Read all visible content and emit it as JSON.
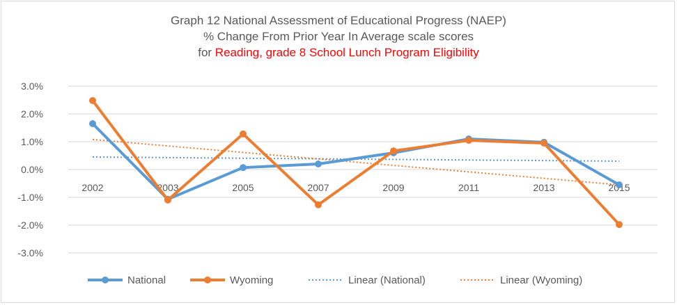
{
  "chart_data": {
    "type": "line",
    "title_lines": [
      "Graph 12 National Assessment of Educational Progress (NAEP)",
      "% Change From Prior Year In Average scale scores"
    ],
    "title_line3_prefix": "for ",
    "title_line3_highlight": "Reading, grade 8 School Lunch Program Eligibility",
    "categories": [
      "2002",
      "2003",
      "2005",
      "2007",
      "2009",
      "2011",
      "2013",
      "2015"
    ],
    "yticks": [
      "3.0%",
      "2.0%",
      "1.0%",
      "0.0%",
      "-1.0%",
      "-2.0%",
      "-3.0%"
    ],
    "ylim": [
      -3.0,
      3.0
    ],
    "grid": true,
    "legend_position": "bottom",
    "series": [
      {
        "name": "National",
        "color": "#5b9bd5",
        "values": [
          1.65,
          -1.07,
          0.07,
          0.2,
          0.6,
          1.1,
          0.98,
          -0.55
        ]
      },
      {
        "name": "Wyoming",
        "color": "#ed7d31",
        "values": [
          2.48,
          -1.1,
          1.28,
          -1.27,
          0.67,
          1.05,
          0.95,
          -1.98
        ]
      }
    ],
    "trendlines": [
      {
        "name": "Linear (National)",
        "color": "#5b9bd5",
        "values": [
          0.45,
          0.3
        ]
      },
      {
        "name": "Linear (Wyoming)",
        "color": "#ed7d31",
        "values": [
          1.08,
          -0.55
        ]
      }
    ]
  }
}
